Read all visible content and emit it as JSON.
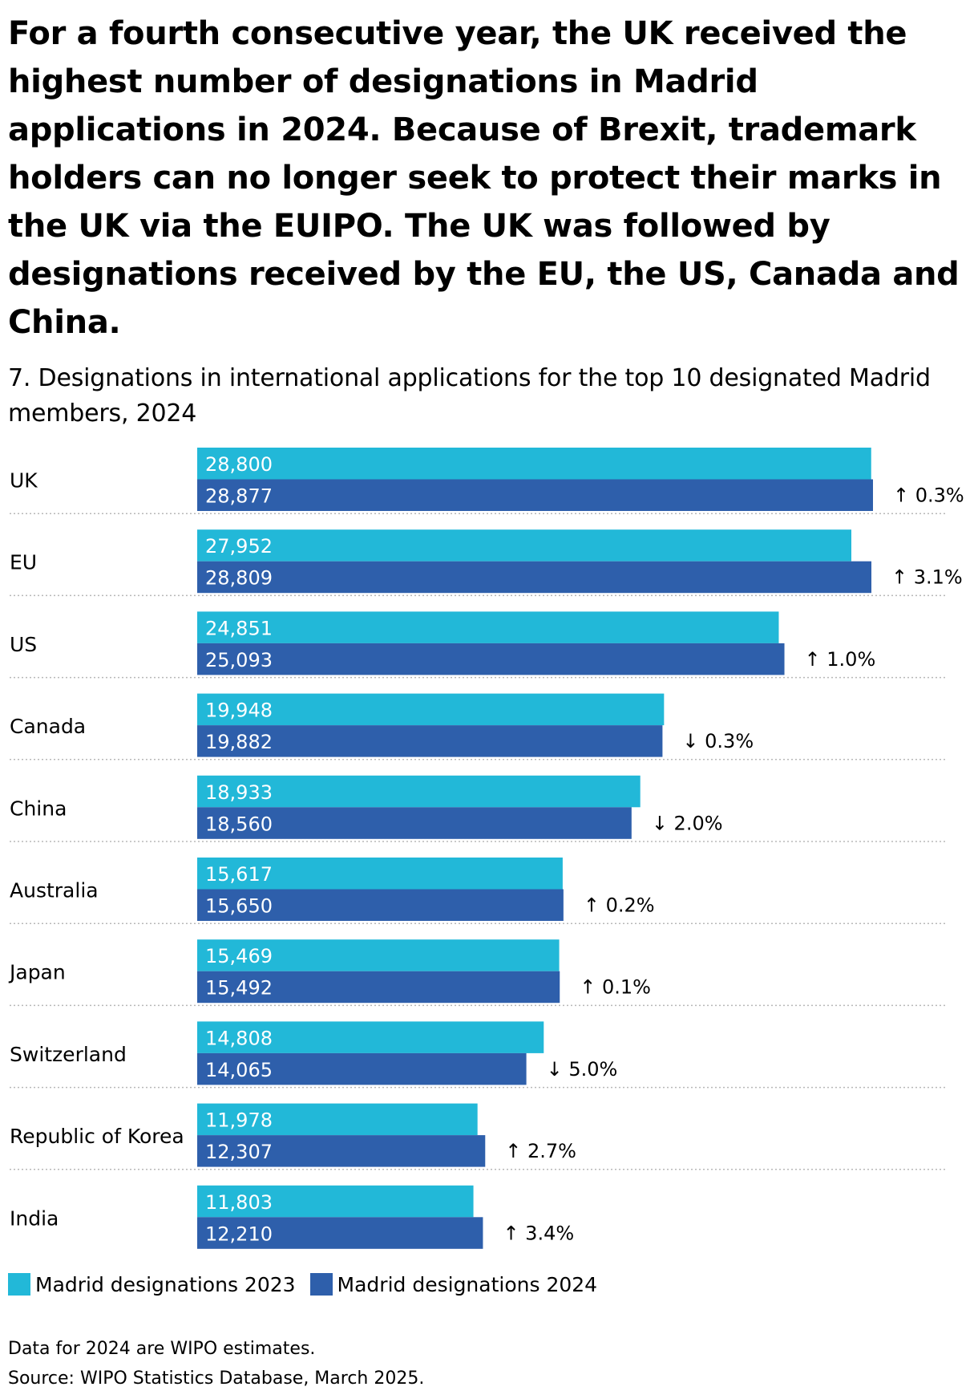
{
  "headline": "For a fourth consecutive year, the UK received the highest number of designations in Madrid applications in 2024. Because of Brexit, trademark holders can no longer seek to protect their marks in the UK via the EUIPO. The UK was followed by designations received by the EU, the US, Canada and China.",
  "chart_data": {
    "type": "bar",
    "orientation": "horizontal",
    "title": "7. Designations in international applications for the top 10 designated Madrid members, 2024",
    "categories": [
      "UK",
      "EU",
      "US",
      "Canada",
      "China",
      "Australia",
      "Japan",
      "Switzerland",
      "Republic of Korea",
      "India"
    ],
    "series": [
      {
        "name": "Madrid designations 2023",
        "color": "#22b8d8",
        "values": [
          28800,
          27952,
          24851,
          19948,
          18933,
          15617,
          15469,
          14808,
          11978,
          11803
        ],
        "labels": [
          "28,800",
          "27,952",
          "24,851",
          "19,948",
          "18,933",
          "15,617",
          "15,469",
          "14,808",
          "11,978",
          "11,803"
        ]
      },
      {
        "name": "Madrid designations 2024",
        "color": "#2e5fab",
        "values": [
          28877,
          28809,
          25093,
          19882,
          18560,
          15650,
          15492,
          14065,
          12307,
          12210
        ],
        "labels": [
          "28,877",
          "28,809",
          "25,093",
          "19,882",
          "18,560",
          "15,650",
          "15,492",
          "14,065",
          "12,307",
          "12,210"
        ]
      }
    ],
    "changes": [
      "↑ 0.3%",
      "↑ 3.1%",
      "↑ 1.0%",
      "↓ 0.3%",
      "↓ 2.0%",
      "↑ 0.2%",
      "↑ 0.1%",
      "↓ 5.0%",
      "↑ 2.7%",
      "↑ 3.4%"
    ],
    "xlim": [
      0,
      28877
    ],
    "legend_position": "bottom-left",
    "grid": false,
    "row_separators": "dotted"
  },
  "legend": {
    "item_2023": "Madrid designations 2023",
    "item_2024": "Madrid designations 2024"
  },
  "footnotes": {
    "note": "Data for 2024 are WIPO estimates.",
    "source": "Source: WIPO Statistics Database, March 2025."
  },
  "colors": {
    "bar_2023": "#22b8d8",
    "bar_2024": "#2e5fab",
    "label_text": "#ffffff",
    "separator": "#b8b8b8"
  }
}
